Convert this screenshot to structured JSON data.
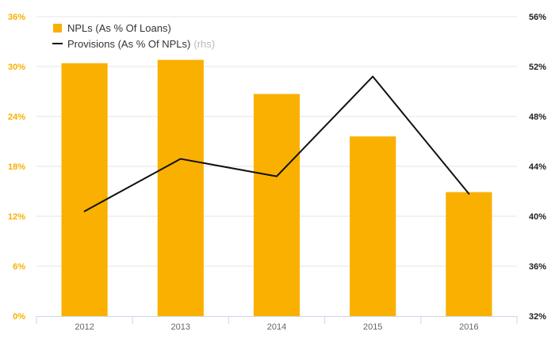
{
  "chart_data": {
    "type": "bar",
    "categories": [
      "2012",
      "2013",
      "2014",
      "2015",
      "2016"
    ],
    "series": [
      {
        "name": "NPLs (As % Of Loans)",
        "kind": "bar",
        "axis": "left",
        "values": [
          30.4,
          30.8,
          26.7,
          21.6,
          14.9
        ],
        "color": "#F9B000"
      },
      {
        "name": "Provisions (As % Of NPLs)",
        "name_suffix": "(rhs)",
        "kind": "line",
        "axis": "right",
        "values": [
          40.4,
          44.6,
          43.2,
          51.2,
          41.8
        ],
        "color": "#111111"
      }
    ],
    "y_left": {
      "ticks": [
        "0%",
        "6%",
        "12%",
        "18%",
        "24%",
        "30%",
        "36%"
      ],
      "min": 0,
      "max": 36,
      "color": "#F9B000"
    },
    "y_right": {
      "ticks": [
        "32%",
        "36%",
        "40%",
        "44%",
        "48%",
        "52%",
        "56%"
      ],
      "min": 32,
      "max": 56,
      "color": "#222222"
    },
    "grid": true,
    "legend_position": "top-left",
    "colors": {
      "grid": "#e6e6e6",
      "axis": "#ccd6eb",
      "tick_x": "#666666"
    }
  }
}
